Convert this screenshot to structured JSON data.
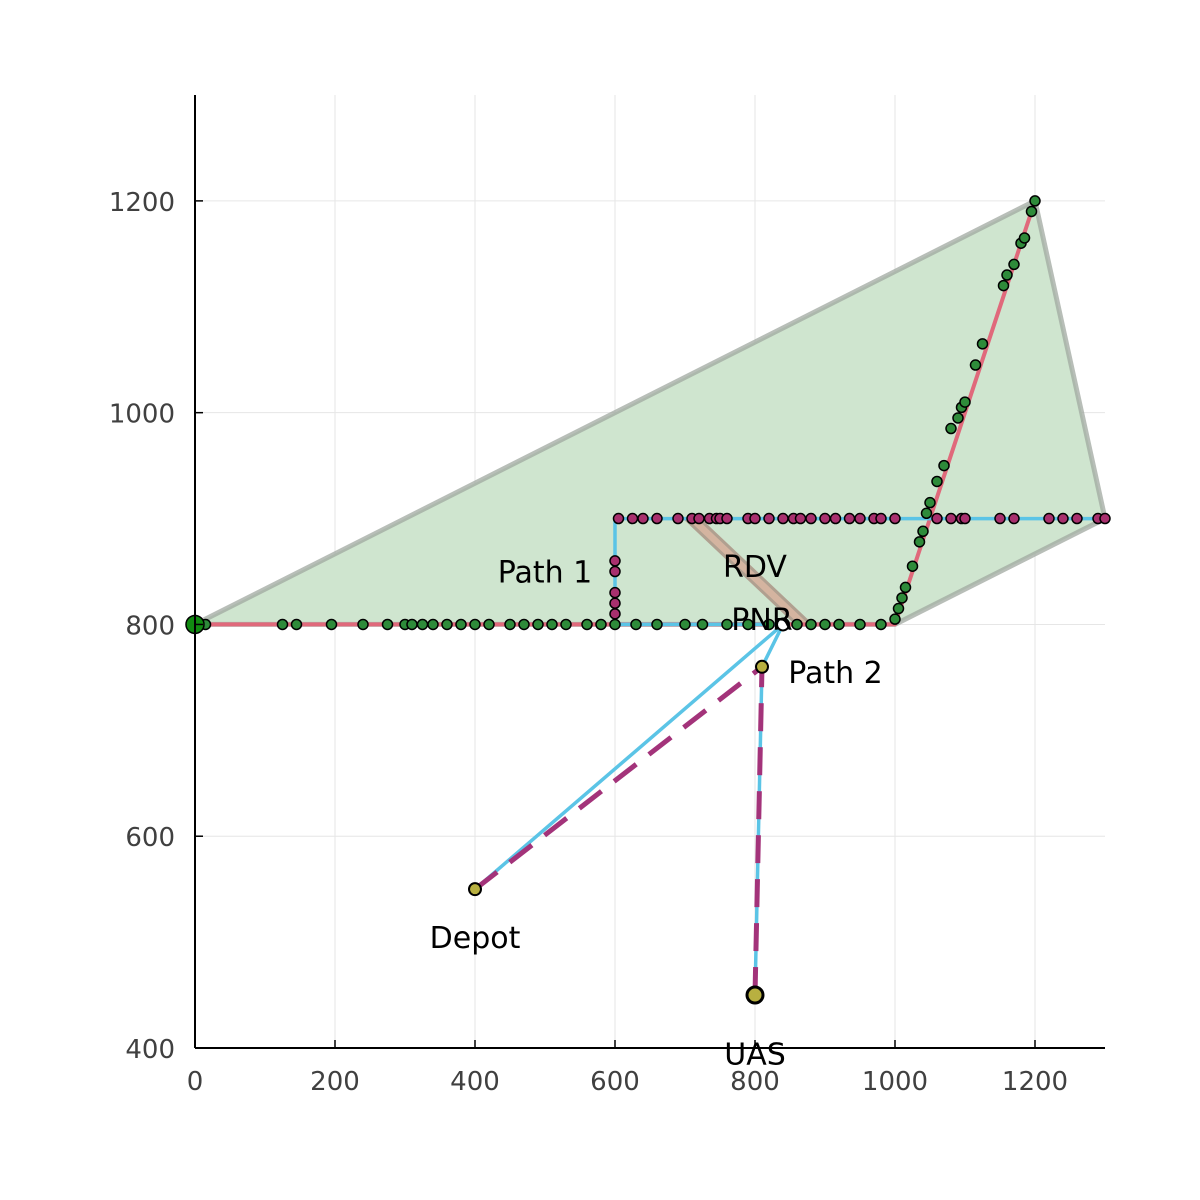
{
  "chart_data": {
    "type": "scatter",
    "xlim": [
      0,
      1300
    ],
    "ylim": [
      400,
      1300
    ],
    "x_ticks": [
      0,
      200,
      400,
      600,
      800,
      1000,
      1200
    ],
    "y_ticks": [
      400,
      600,
      800,
      1000,
      1200
    ],
    "grid": true,
    "colors": {
      "region_fill": "#cfe5cf",
      "region_edge": "#a0a8a0",
      "corridor_fill": "#d4b4a0",
      "corridor_edge": "#b0a090",
      "road_line": "#e0697b",
      "path_line": "#5bc4e6",
      "dashed_line": "#a3337a",
      "green_marker": "#2e8b3a",
      "magenta_marker": "#a8306e",
      "depot_marker": "#b8b040"
    },
    "region_polygon": [
      [
        0,
        800
      ],
      [
        1200,
        1200
      ],
      [
        1300,
        900
      ],
      [
        1000,
        800
      ],
      [
        0,
        800
      ]
    ],
    "corridor_polygon": [
      [
        700,
        900
      ],
      [
        720,
        900
      ],
      [
        880,
        800
      ],
      [
        860,
        800
      ]
    ],
    "road_lines": [
      [
        [
          0,
          800
        ],
        [
          1000,
          800
        ],
        [
          1200,
          1200
        ]
      ]
    ],
    "path_lines": [
      [
        [
          400,
          550
        ],
        [
          840,
          800
        ],
        [
          600,
          800
        ],
        [
          600,
          900
        ],
        [
          1300,
          900
        ]
      ],
      [
        [
          800,
          450
        ],
        [
          810,
          760
        ],
        [
          840,
          800
        ]
      ]
    ],
    "dashed_lines": [
      [
        [
          400,
          550
        ],
        [
          810,
          760
        ]
      ],
      [
        [
          800,
          450
        ],
        [
          810,
          760
        ]
      ]
    ],
    "green_points": [
      [
        0,
        800
      ],
      [
        15,
        800
      ],
      [
        125,
        800
      ],
      [
        145,
        800
      ],
      [
        195,
        800
      ],
      [
        240,
        800
      ],
      [
        275,
        800
      ],
      [
        300,
        800
      ],
      [
        310,
        800
      ],
      [
        325,
        800
      ],
      [
        340,
        800
      ],
      [
        360,
        800
      ],
      [
        380,
        800
      ],
      [
        400,
        800
      ],
      [
        420,
        800
      ],
      [
        450,
        800
      ],
      [
        470,
        800
      ],
      [
        490,
        800
      ],
      [
        510,
        800
      ],
      [
        530,
        800
      ],
      [
        560,
        800
      ],
      [
        580,
        800
      ],
      [
        600,
        800
      ],
      [
        630,
        800
      ],
      [
        660,
        800
      ],
      [
        700,
        800
      ],
      [
        725,
        800
      ],
      [
        760,
        800
      ],
      [
        790,
        800
      ],
      [
        820,
        800
      ],
      [
        840,
        800
      ],
      [
        860,
        800
      ],
      [
        880,
        800
      ],
      [
        900,
        800
      ],
      [
        920,
        800
      ],
      [
        950,
        800
      ],
      [
        980,
        800
      ],
      [
        1000,
        805
      ],
      [
        1005,
        815
      ],
      [
        1010,
        825
      ],
      [
        1015,
        835
      ],
      [
        1025,
        855
      ],
      [
        1035,
        878
      ],
      [
        1040,
        888
      ],
      [
        1045,
        905
      ],
      [
        1050,
        915
      ],
      [
        1060,
        935
      ],
      [
        1070,
        950
      ],
      [
        1080,
        985
      ],
      [
        1090,
        995
      ],
      [
        1095,
        1005
      ],
      [
        1100,
        1010
      ],
      [
        1115,
        1045
      ],
      [
        1125,
        1065
      ],
      [
        1155,
        1120
      ],
      [
        1160,
        1130
      ],
      [
        1170,
        1140
      ],
      [
        1180,
        1160
      ],
      [
        1185,
        1165
      ],
      [
        1195,
        1190
      ],
      [
        1200,
        1200
      ]
    ],
    "magenta_points": [
      [
        600,
        810
      ],
      [
        600,
        820
      ],
      [
        600,
        830
      ],
      [
        600,
        850
      ],
      [
        600,
        860
      ],
      [
        605,
        900
      ],
      [
        625,
        900
      ],
      [
        640,
        900
      ],
      [
        660,
        900
      ],
      [
        690,
        900
      ],
      [
        710,
        900
      ],
      [
        720,
        900
      ],
      [
        735,
        900
      ],
      [
        745,
        900
      ],
      [
        750,
        900
      ],
      [
        760,
        900
      ],
      [
        790,
        900
      ],
      [
        800,
        900
      ],
      [
        820,
        900
      ],
      [
        840,
        900
      ],
      [
        855,
        900
      ],
      [
        865,
        900
      ],
      [
        880,
        900
      ],
      [
        900,
        900
      ],
      [
        915,
        900
      ],
      [
        935,
        900
      ],
      [
        950,
        900
      ],
      [
        970,
        900
      ],
      [
        980,
        900
      ],
      [
        1000,
        900
      ],
      [
        1060,
        900
      ],
      [
        1080,
        900
      ],
      [
        1095,
        900
      ],
      [
        1100,
        900
      ],
      [
        1150,
        900
      ],
      [
        1170,
        900
      ],
      [
        1220,
        900
      ],
      [
        1240,
        900
      ],
      [
        1260,
        900
      ],
      [
        1290,
        900
      ],
      [
        1300,
        900
      ]
    ],
    "special_points": {
      "origin": [
        0,
        800
      ],
      "depot": [
        400,
        550
      ],
      "uas": [
        800,
        450
      ],
      "pnr": [
        840,
        800
      ],
      "rdv": [
        810,
        760
      ]
    },
    "annotations": [
      {
        "text": "Path 1",
        "x": 500,
        "y": 850
      },
      {
        "text": "RDV",
        "x": 800,
        "y": 855
      },
      {
        "text": "PNR",
        "x": 810,
        "y": 805
      },
      {
        "text": "Path 2",
        "x": 915,
        "y": 755
      },
      {
        "text": "Depot",
        "x": 400,
        "y": 505
      },
      {
        "text": "UAS",
        "x": 800,
        "y": 395
      }
    ]
  }
}
